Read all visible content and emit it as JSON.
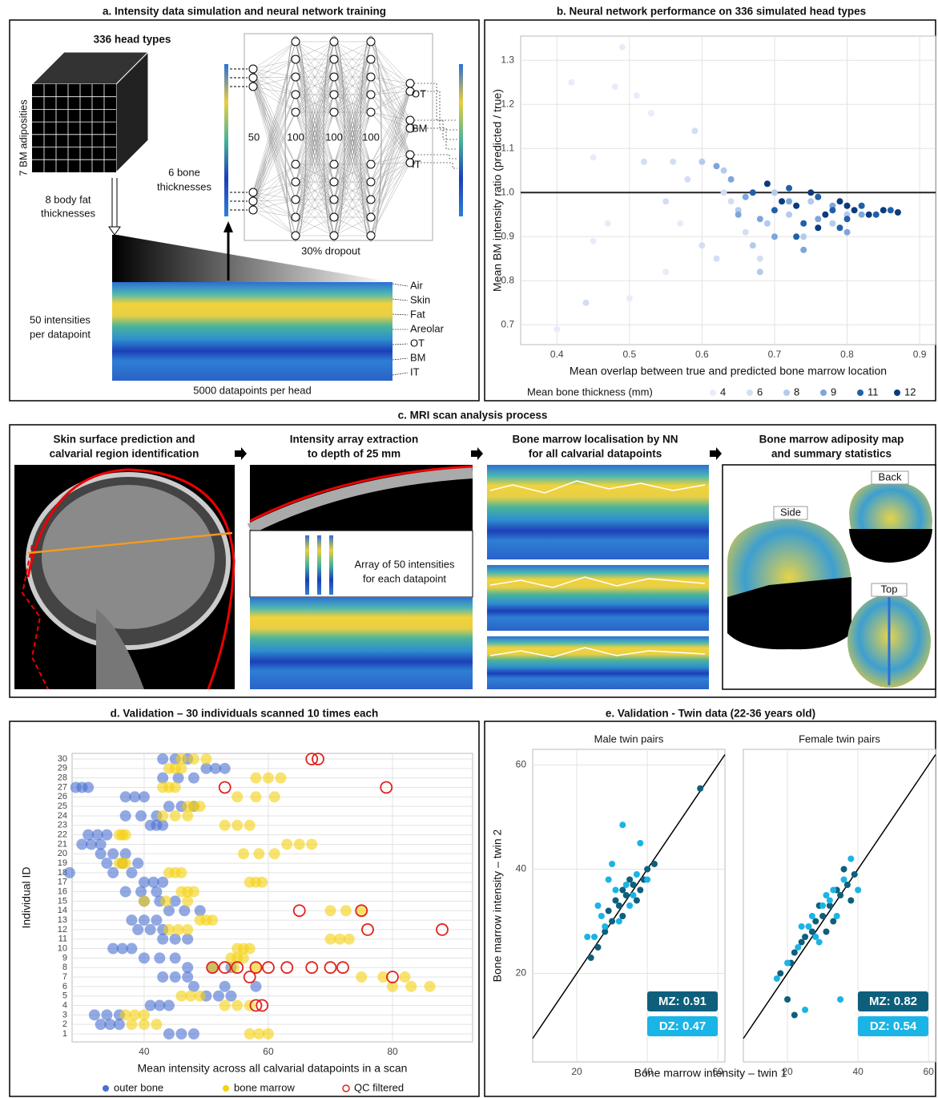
{
  "panels": {
    "a": {
      "title": "a. Intensity data simulation and neural network training",
      "cube_title": "336 head types",
      "cube_left": "7 BM adiposities",
      "cube_bottom": [
        "8 body fat",
        "thicknesses"
      ],
      "cube_right": [
        "6 bone",
        "thicknesses"
      ],
      "layers": [
        "50",
        "100",
        "100",
        "100"
      ],
      "dropout": "30% dropout",
      "outputs": [
        "OT",
        "BM",
        "IT"
      ],
      "intensity_label": [
        "50 intensities",
        "per datapoint"
      ],
      "datapoint_label": "5000 datapoints per head",
      "tissues": [
        "Air",
        "Skin",
        "Fat",
        "Areolar",
        "OT",
        "BM",
        "IT"
      ]
    },
    "c": {
      "title": "c. MRI scan analysis process",
      "steps": [
        [
          "Skin surface prediction and",
          "calvarial region identification"
        ],
        [
          "Intensity array extraction",
          "to depth of 25 mm"
        ],
        [
          "Bone marrow localisation by NN",
          "for all calvarial datapoints"
        ],
        [
          "Bone marrow adiposity map",
          "and summary statistics"
        ]
      ],
      "array_note": [
        "Array of 50 intensities",
        "for each datapoint"
      ],
      "views": [
        "Side",
        "Back",
        "Top"
      ]
    },
    "e": {
      "title": "e. Validation - Twin data (22-36 years old)",
      "xlabel": "Bone marrow intensity – twin 1",
      "ylabel": "Bone marrow intensity – twin 2"
    }
  },
  "chart_data": [
    {
      "type": "scatter",
      "title": "b. Neural network performance on 336 simulated head types",
      "xlabel": "Mean overlap between true and predicted bone marrow location",
      "ylabel": "Mean BM intensity ratio (predicted / true)",
      "xlim": [
        0.35,
        0.922
      ],
      "ylim": [
        0.655,
        1.355
      ],
      "xticks": [
        0.4,
        0.5,
        0.6,
        0.7,
        0.8,
        0.9
      ],
      "yticks": [
        0.7,
        0.8,
        0.9,
        {
          "value": 1,
          "label": "1.0"
        },
        1.1,
        1.2,
        1.3
      ],
      "grid": true,
      "hline": 1,
      "legend": "bottom",
      "legend_title": "Mean bone thickness (mm)",
      "series": [
        {
          "name": "4",
          "color": "#e8ecfa",
          "x": [
            0.4,
            0.42,
            0.45,
            0.48,
            0.49,
            0.51,
            0.53,
            0.47,
            0.5,
            0.55,
            0.57,
            0.45
          ],
          "y": [
            0.69,
            1.25,
            1.08,
            1.24,
            1.33,
            1.22,
            1.18,
            0.93,
            0.76,
            0.82,
            0.93,
            0.89
          ]
        },
        {
          "name": "6",
          "color": "#d3def5",
          "x": [
            0.44,
            0.52,
            0.56,
            0.58,
            0.6,
            0.62,
            0.64,
            0.66,
            0.68,
            0.63,
            0.55,
            0.59
          ],
          "y": [
            0.75,
            1.07,
            1.07,
            1.03,
            0.88,
            0.85,
            0.98,
            0.91,
            0.85,
            1.0,
            0.98,
            1.14
          ]
        },
        {
          "name": "8",
          "color": "#b3cbec",
          "x": [
            0.6,
            0.63,
            0.65,
            0.67,
            0.69,
            0.7,
            0.72,
            0.74,
            0.75,
            0.78,
            0.8,
            0.68
          ],
          "y": [
            1.07,
            1.05,
            0.96,
            0.88,
            0.93,
            1.0,
            0.95,
            0.9,
            0.98,
            0.93,
            0.95,
            0.82
          ]
        },
        {
          "name": "9",
          "color": "#7ea6db",
          "x": [
            0.62,
            0.64,
            0.66,
            0.68,
            0.7,
            0.72,
            0.74,
            0.76,
            0.78,
            0.8,
            0.82,
            0.65
          ],
          "y": [
            1.06,
            1.03,
            0.99,
            0.94,
            0.9,
            0.98,
            0.87,
            0.94,
            0.97,
            0.91,
            0.95,
            0.95
          ]
        },
        {
          "name": "11",
          "color": "#2060aa",
          "x": [
            0.67,
            0.7,
            0.72,
            0.74,
            0.76,
            0.78,
            0.8,
            0.82,
            0.84,
            0.86,
            0.73,
            0.79
          ],
          "y": [
            1.0,
            0.96,
            1.01,
            0.93,
            0.99,
            0.96,
            0.94,
            0.97,
            0.95,
            0.96,
            0.9,
            0.92
          ]
        },
        {
          "name": "12",
          "color": "#0b3b7f",
          "x": [
            0.69,
            0.71,
            0.73,
            0.75,
            0.77,
            0.79,
            0.81,
            0.83,
            0.85,
            0.87,
            0.8,
            0.76
          ],
          "y": [
            1.02,
            0.98,
            0.97,
            1.0,
            0.95,
            0.98,
            0.96,
            0.95,
            0.96,
            0.955,
            0.97,
            0.92
          ]
        }
      ]
    },
    {
      "type": "dot",
      "title": "d. Validation – 30 individuals scanned 10 times each",
      "xlabel": "Mean intensity across all calvarial datapoints in a scan",
      "ylabel": "Individual ID",
      "categories": [
        "1",
        "2",
        "3",
        "4",
        "5",
        "6",
        "7",
        "8",
        "9",
        "10",
        "11",
        "12",
        "13",
        "14",
        "15",
        "16",
        "17",
        "18",
        "19",
        "20",
        "21",
        "22",
        "23",
        "24",
        "25",
        "26",
        "27",
        "28",
        "29",
        "30"
      ],
      "xlim": [
        28.4,
        92.9
      ],
      "xticks": [
        40,
        60,
        80
      ],
      "grid": true,
      "legend": "bottom",
      "series": [
        {
          "name": "outer bone",
          "color": "#4a6fd1",
          "marker": "dot",
          "values": [
            [
              44,
              46,
              48
            ],
            [
              33,
              34.5,
              36
            ],
            [
              32,
              34,
              36
            ],
            [
              41,
              42.5,
              44
            ],
            [
              50,
              52,
              54
            ],
            [
              48,
              53,
              58
            ],
            [
              43,
              45,
              47
            ],
            [
              47,
              51,
              54
            ],
            [
              40,
              42.5,
              45
            ],
            [
              35,
              36.5,
              38
            ],
            [
              43,
              45,
              47
            ],
            [
              39,
              41,
              43
            ],
            [
              38,
              40,
              42
            ],
            [
              44,
              46.5,
              49
            ],
            [
              40,
              42.5,
              45
            ],
            [
              37,
              39.5,
              42
            ],
            [
              40,
              41.5,
              43
            ],
            [
              28,
              35,
              38
            ],
            [
              34,
              36.5,
              39
            ],
            [
              33,
              35,
              37
            ],
            [
              30,
              31.5,
              33
            ],
            [
              31,
              32.5,
              34
            ],
            [
              41,
              42,
              43
            ],
            [
              37,
              39.5,
              42
            ],
            [
              44,
              46,
              48
            ],
            [
              37,
              38.5,
              40
            ],
            [
              29,
              30,
              31
            ],
            [
              43,
              45.5,
              48
            ],
            [
              50,
              51.5,
              53
            ],
            [
              43,
              45,
              47
            ]
          ]
        },
        {
          "name": "bone marrow",
          "color": "#f5d10f",
          "marker": "dot",
          "values": [
            [
              57,
              58.5,
              60
            ],
            [
              38,
              40,
              42
            ],
            [
              37,
              38.5,
              40
            ],
            [
              53,
              55,
              57
            ],
            [
              46,
              47.5,
              49
            ],
            [
              80,
              83,
              86
            ],
            [
              75,
              78.5,
              82
            ],
            [
              51,
              54.5,
              58
            ],
            [
              54,
              55,
              56
            ],
            [
              55,
              56,
              57
            ],
            [
              70,
              71.5,
              73
            ],
            [
              44,
              45.5,
              47
            ],
            [
              49,
              50,
              51
            ],
            [
              70,
              72.5,
              75
            ],
            [
              40,
              43.5,
              47
            ],
            [
              46,
              47,
              48
            ],
            [
              57,
              58,
              59
            ],
            [
              44,
              45,
              46
            ],
            [
              36,
              36.5,
              37
            ],
            [
              56,
              58.5,
              61
            ],
            [
              63,
              65,
              67
            ],
            [
              36,
              36.5,
              37
            ],
            [
              53,
              55,
              57
            ],
            [
              43,
              45,
              47
            ],
            [
              47,
              48,
              49
            ],
            [
              55,
              58,
              61
            ],
            [
              43,
              44,
              45
            ],
            [
              58,
              60,
              62
            ],
            [
              44,
              45,
              46
            ],
            [
              46,
              48,
              50
            ]
          ]
        },
        {
          "name": "QC filtered",
          "color": "#e0231c",
          "marker": "ring",
          "values": [
            [],
            [],
            [],
            [
              58,
              59
            ],
            [],
            [],
            [
              57,
              80
            ],
            [
              51,
              53,
              55,
              58,
              60,
              63,
              67,
              70,
              72
            ],
            [],
            [],
            [],
            [
              76,
              88
            ],
            [],
            [
              65,
              75
            ],
            [],
            [],
            [],
            [],
            [],
            [],
            [],
            [],
            [],
            [],
            [],
            [],
            [
              53,
              79
            ],
            [],
            [],
            [
              67,
              68
            ]
          ]
        }
      ]
    },
    {
      "type": "scatter",
      "title": "Male twin pairs",
      "xlim": [
        7.5,
        62
      ],
      "ylim": [
        3,
        63
      ],
      "xticks": [
        20,
        40,
        60
      ],
      "yticks": [
        20,
        40,
        60
      ],
      "grid": true,
      "diagonal": true,
      "series": [
        {
          "label": "MZ:  0.91",
          "color": "#0d5f7c",
          "x": [
            55,
            30,
            32,
            34,
            28,
            36,
            38,
            33,
            31,
            35,
            40,
            26,
            37,
            29,
            39,
            24,
            33,
            42
          ],
          "y": [
            55.5,
            30,
            33,
            35,
            28,
            37,
            36,
            31,
            34,
            38,
            40,
            25,
            34,
            32,
            38,
            23,
            36,
            41
          ]
        },
        {
          "label": "DZ:  0.47",
          "color": "#1ab4e6",
          "x": [
            33,
            27,
            29,
            25,
            31,
            35,
            37,
            28,
            32,
            30,
            36,
            26,
            38,
            34,
            23,
            40
          ],
          "y": [
            48.5,
            31,
            38,
            27,
            36,
            33,
            39,
            29,
            30,
            41,
            35,
            33,
            45,
            37,
            27,
            38
          ]
        }
      ]
    },
    {
      "type": "scatter",
      "title": "Female twin pairs",
      "xlim": [
        7.5,
        62
      ],
      "ylim": [
        3,
        63
      ],
      "xticks": [
        20,
        40,
        60
      ],
      "grid": true,
      "diagonal": true,
      "series": [
        {
          "label": "MZ:  0.82",
          "color": "#0d5f7c",
          "x": [
            18,
            22,
            25,
            28,
            30,
            32,
            35,
            37,
            39,
            27,
            29,
            33,
            36,
            24,
            31,
            38,
            21,
            34,
            22,
            20
          ],
          "y": [
            20,
            24,
            27,
            30,
            31,
            33,
            35,
            37,
            39,
            28,
            33,
            30,
            40,
            26,
            28,
            34,
            22,
            36,
            12,
            15
          ]
        },
        {
          "label": "DZ:  0.54",
          "color": "#1ab4e6",
          "x": [
            17,
            20,
            23,
            26,
            28,
            30,
            33,
            36,
            38,
            40,
            27,
            31,
            34,
            24,
            35,
            25,
            32,
            29
          ],
          "y": [
            19,
            22,
            25,
            29,
            27,
            33,
            36,
            38,
            42,
            36,
            31,
            35,
            31,
            29,
            15,
            13,
            34,
            26
          ]
        }
      ]
    }
  ]
}
